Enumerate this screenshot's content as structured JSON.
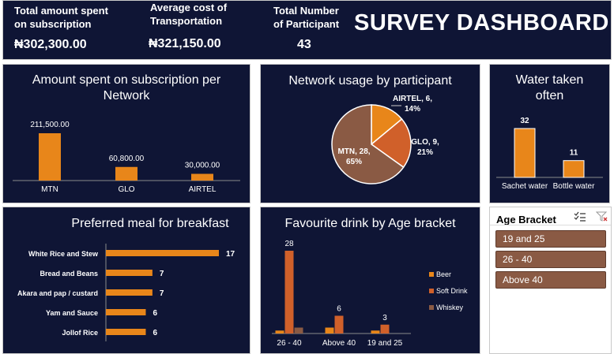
{
  "header": {
    "kpis": [
      {
        "label_line1": "Total amount spent",
        "label_line2": "on subscription",
        "value": "₦302,300.00"
      },
      {
        "label_line1": "Average cost of",
        "label_line2": "Transportation",
        "value": "₦321,150.00"
      },
      {
        "label_line1": "Total Number",
        "label_line2": "of Participant",
        "value": "43"
      }
    ],
    "title": "SURVEY DASHBOARD"
  },
  "colors": {
    "panel_bg": "#0f1535",
    "bar_orange": "#e8861a",
    "glo": "#d0602a",
    "mtn": "#8a5a44",
    "whiskey": "#8a5a44",
    "slicer_btn": "#8a5a44"
  },
  "chart_data": [
    {
      "type": "bar",
      "title_line1": "Amount spent on subscription per",
      "title_line2": "Network",
      "categories": [
        "MTN",
        "GLO",
        "AIRTEL"
      ],
      "values": [
        211500,
        60800,
        30000
      ],
      "value_labels": [
        "211,500.00",
        "60,800.00",
        "30,000.00"
      ]
    },
    {
      "type": "pie",
      "title": "Network usage by participant",
      "slices": [
        {
          "name": "AIRTEL",
          "value": 6,
          "percent": 14,
          "label_line1": "AIRTEL, 6,",
          "label_line2": "14%"
        },
        {
          "name": "GLO",
          "value": 9,
          "percent": 21,
          "label_line1": "GLO, 9,",
          "label_line2": "21%"
        },
        {
          "name": "MTN",
          "value": 28,
          "percent": 65,
          "label_line1": "MTN, 28,",
          "label_line2": "65%"
        }
      ]
    },
    {
      "type": "bar",
      "title_line1": "Water taken",
      "title_line2": "often",
      "categories": [
        "Sachet water",
        "Bottle water"
      ],
      "values": [
        32,
        11
      ],
      "value_labels": [
        "32",
        "11"
      ]
    },
    {
      "type": "bar",
      "orientation": "horizontal",
      "title": "Preferred meal for breakfast",
      "categories": [
        "White Rice and Stew",
        "Bread and Beans",
        "Akara and pap / custard",
        "Yam and Sauce",
        "Jollof Rice"
      ],
      "values": [
        17,
        7,
        7,
        6,
        6
      ],
      "value_labels": [
        "17",
        "7",
        "7",
        "6",
        "6"
      ]
    },
    {
      "type": "bar",
      "title": "Favourite drink by Age bracket",
      "categories": [
        "26 - 40",
        "Above 40",
        "19 and 25"
      ],
      "series": [
        {
          "name": "Beer",
          "values": [
            1,
            2,
            1
          ]
        },
        {
          "name": "Soft Drink",
          "values": [
            28,
            6,
            3
          ]
        },
        {
          "name": "Whiskey",
          "values": [
            2,
            0,
            0
          ]
        }
      ],
      "value_labels": [
        "28",
        "6",
        "3"
      ],
      "legend": "right"
    }
  ],
  "slicer": {
    "title": "Age Bracket",
    "items": [
      "19 and 25",
      "26 - 40",
      "Above 40"
    ]
  }
}
